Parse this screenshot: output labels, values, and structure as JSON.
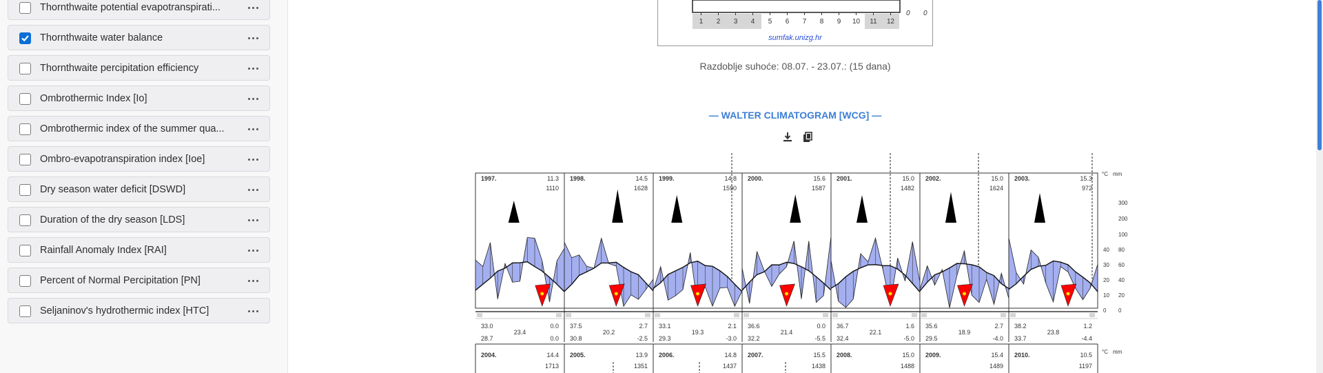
{
  "sidebar": {
    "items": [
      {
        "label": "Thornthwaite potential evapotranspirati...",
        "checked": false
      },
      {
        "label": "Thornthwaite water balance",
        "checked": true
      },
      {
        "label": "Thornthwaite percipitation efficiency",
        "checked": false
      },
      {
        "label": "Ombrothermic Index [Io]",
        "checked": false
      },
      {
        "label": "Ombrothermic index of the summer qua...",
        "checked": false
      },
      {
        "label": "Ombro-evapotranspiration index [Ioe]",
        "checked": false
      },
      {
        "label": "Dry season water deficit [DSWD]",
        "checked": false
      },
      {
        "label": "Duration of the dry season [LDS]",
        "checked": false
      },
      {
        "label": "Rainfall Anomaly Index [RAI]",
        "checked": false
      },
      {
        "label": "Percent of Normal Percipitation [PN]",
        "checked": false
      },
      {
        "label": "Seljaninov's hydrothermic index [HTC]",
        "checked": false
      }
    ],
    "more_icon": "more-horizontal-icon"
  },
  "top_chart": {
    "months": [
      "1",
      "2",
      "3",
      "4",
      "5",
      "6",
      "7",
      "8",
      "9",
      "10",
      "11",
      "12"
    ],
    "right_values": [
      "0",
      "0"
    ],
    "source": "sumfak.unizg.hr"
  },
  "dry_period": "Razdoblje suhoće: 08.07. - 23.07.: (15 dana)",
  "wcg": {
    "title": "— WALTER CLIMATOGRAM [WCG] —",
    "tools": {
      "download_icon": "download-icon",
      "copy_icon": "copy-icon"
    },
    "unit_temp": "°C",
    "unit_prec": "mm",
    "scale_prec": [
      "300",
      "200",
      "100",
      "80",
      "60",
      "40",
      "20",
      "0"
    ],
    "scale_temp": [
      "40",
      "30",
      "20",
      "10",
      "0"
    ],
    "years_row1": [
      {
        "year": "1997.",
        "t": "11.3",
        "p": "1110",
        "a": "33.0",
        "b": "28.7",
        "m": "23.4",
        "c": "0.0",
        "d": "0.0"
      },
      {
        "year": "1998.",
        "t": "14.5",
        "p": "1628",
        "a": "37.5",
        "b": "30.8",
        "m": "20.2",
        "c": "2.7",
        "d": "-2.5"
      },
      {
        "year": "1999.",
        "t": "14.8",
        "p": "1590",
        "a": "33.1",
        "b": "29.3",
        "m": "19.3",
        "c": "2.1",
        "d": "-3.0"
      },
      {
        "year": "2000.",
        "t": "15.6",
        "p": "1587",
        "a": "36.6",
        "b": "32.2",
        "m": "21.4",
        "c": "0.0",
        "d": "-5.5"
      },
      {
        "year": "2001.",
        "t": "15.0",
        "p": "1482",
        "a": "36.7",
        "b": "32.4",
        "m": "22.1",
        "c": "1.6",
        "d": "-5.0"
      },
      {
        "year": "2002.",
        "t": "15.0",
        "p": "1624",
        "a": "35.6",
        "b": "29.5",
        "m": "18.9",
        "c": "2.7",
        "d": "-4.0"
      },
      {
        "year": "2003.",
        "t": "15.3",
        "p": "972",
        "a": "38.2",
        "b": "33.7",
        "m": "23.8",
        "c": "1.2",
        "d": "-4.4"
      }
    ],
    "years_row2": [
      {
        "year": "2004.",
        "t": "14.4",
        "p": "1713"
      },
      {
        "year": "2005.",
        "t": "13.9",
        "p": "1351"
      },
      {
        "year": "2006.",
        "t": "14.8",
        "p": "1437"
      },
      {
        "year": "2007.",
        "t": "15.5",
        "p": "1438"
      },
      {
        "year": "2008.",
        "t": "15.0",
        "p": "1488"
      },
      {
        "year": "2009.",
        "t": "15.4",
        "p": "1489"
      },
      {
        "year": "2010.",
        "t": "10.5",
        "p": "1197"
      }
    ],
    "colors": {
      "humid": "#a4aff0",
      "perhumid": "#000000",
      "arid": "#ff0000",
      "dry_dots": "#f2e600"
    }
  }
}
